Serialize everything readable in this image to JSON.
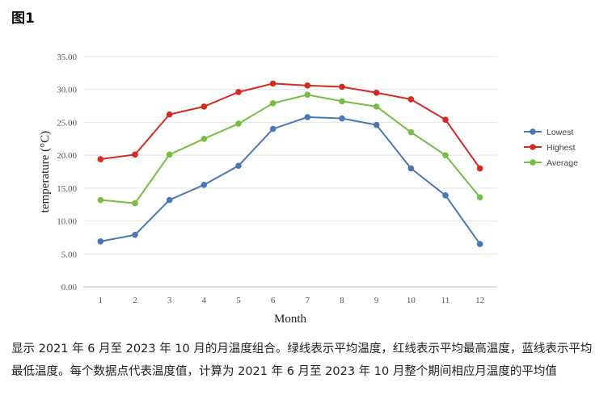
{
  "figure_label": "图1",
  "caption": "显示 2021 年 6 月至 2023 年 10 月的月温度组合。绿线表示平均温度，红线表示平均最高温度，蓝线表示平均最低温度。每个数据点代表温度值，计算为 2021 年 6 月至 2023 年 10 月整个期间相应月温度的平均值",
  "chart_data": {
    "type": "line",
    "title": "",
    "xlabel": "Month",
    "ylabel": "temperature (°C)",
    "categories": [
      "1",
      "2",
      "3",
      "4",
      "5",
      "6",
      "7",
      "8",
      "9",
      "10",
      "11",
      "12"
    ],
    "ylim": [
      0,
      35
    ],
    "yticks": [
      "0.00",
      "5.00",
      "10.00",
      "15.00",
      "20.00",
      "25.00",
      "30.00",
      "35.00"
    ],
    "grid": true,
    "legend_position": "right",
    "series": [
      {
        "name": "Lowest",
        "color": "#4a78b6",
        "values": [
          6.9,
          7.9,
          13.2,
          15.5,
          18.4,
          24.0,
          25.8,
          25.6,
          24.6,
          18.0,
          13.9,
          6.5
        ]
      },
      {
        "name": "Highest",
        "color": "#d42a22",
        "values": [
          19.4,
          20.1,
          26.2,
          27.4,
          29.6,
          30.9,
          30.6,
          30.4,
          29.5,
          28.5,
          25.4,
          18.0
        ]
      },
      {
        "name": "Average",
        "color": "#76bd43",
        "values": [
          13.2,
          12.7,
          20.1,
          22.5,
          24.8,
          27.9,
          29.2,
          28.2,
          27.4,
          23.5,
          20.0,
          13.6
        ]
      }
    ]
  }
}
